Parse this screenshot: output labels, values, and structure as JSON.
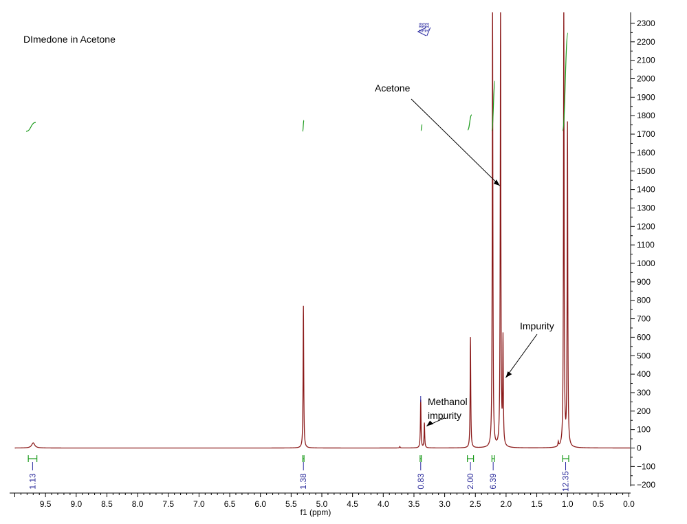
{
  "chart_data": {
    "type": "line",
    "title": "DImedone in Acetone",
    "xlabel": "f1 (ppm)",
    "xlim": [
      10.0,
      0.0
    ],
    "ylim": [
      -200,
      2300
    ],
    "x_reversed": true,
    "x_ticks": [
      9.5,
      9.0,
      8.5,
      8.0,
      7.5,
      7.0,
      6.5,
      6.0,
      5.5,
      5.0,
      4.5,
      4.0,
      3.5,
      3.0,
      2.5,
      2.0,
      1.5,
      1.0,
      0.5,
      0.0
    ],
    "x_tick_labels": [
      "9.5",
      "9.0",
      "8.5",
      "8.0",
      "7.5",
      "7.0",
      "6.5",
      "6.0",
      "5.5",
      "5.0",
      "4.5",
      "4.0",
      "3.5",
      "3.0",
      "2.5",
      "2.0",
      "1.5",
      "1.0",
      "0.5",
      "0.0"
    ],
    "y_ticks": [
      2300,
      2200,
      2100,
      2000,
      1900,
      1800,
      1700,
      1600,
      1500,
      1400,
      1300,
      1200,
      1100,
      1000,
      900,
      800,
      700,
      600,
      500,
      400,
      300,
      200,
      100,
      0,
      -100,
      -200
    ],
    "y_tick_labels": [
      "2300",
      "2200",
      "2100",
      "2000",
      "1900",
      "1800",
      "1700",
      "1600",
      "1500",
      "1400",
      "1300",
      "1200",
      "1100",
      "1000",
      "900",
      "800",
      "700",
      "600",
      "500",
      "400",
      "300",
      "200",
      "100",
      "0",
      "−100",
      "−200"
    ],
    "peaks": [
      {
        "ppm": 9.7,
        "height": 28,
        "width": 0.03
      },
      {
        "ppm": 5.3,
        "height": 770,
        "width": 0.006
      },
      {
        "ppm": 3.73,
        "height": 8,
        "width": 0.006
      },
      {
        "ppm": 3.39,
        "height": 260,
        "width": 0.006
      },
      {
        "ppm": 3.33,
        "height": 135,
        "width": 0.006
      },
      {
        "ppm": 2.58,
        "height": 600,
        "width": 0.006
      },
      {
        "ppm": 2.22,
        "height": 2400,
        "width": 0.006
      },
      {
        "ppm": 2.09,
        "height": 2400,
        "width": 0.006
      },
      {
        "ppm": 2.05,
        "height": 570,
        "width": 0.006
      },
      {
        "ppm": 1.15,
        "height": 25,
        "width": 0.006
      },
      {
        "ppm": 1.06,
        "height": 2400,
        "width": 0.006
      },
      {
        "ppm": 1.0,
        "height": 1745,
        "width": 0.006
      }
    ],
    "integrals": [
      {
        "from": 9.78,
        "to": 9.64,
        "value": "1.13"
      },
      {
        "from": 5.31,
        "to": 5.29,
        "value": "1.38"
      },
      {
        "from": 3.4,
        "to": 3.38,
        "value": "0.83"
      },
      {
        "from": 2.63,
        "to": 2.53,
        "value": "2.00"
      },
      {
        "from": 2.23,
        "to": 2.19,
        "value": "6.39"
      },
      {
        "from": 1.08,
        "to": 0.98,
        "value": "12.35"
      }
    ],
    "peak_labels": [
      "3.39",
      "3.39",
      "3.33"
    ],
    "annotations": [
      {
        "text": "Acetone",
        "target_ppm": 2.09,
        "target_y": 1450
      },
      {
        "text": "Impurity",
        "target_ppm": 2.05,
        "target_y": 400
      },
      {
        "text": "Methanol",
        "text2": "impurity",
        "target_ppm": 3.34,
        "target_y": 115
      }
    ]
  }
}
